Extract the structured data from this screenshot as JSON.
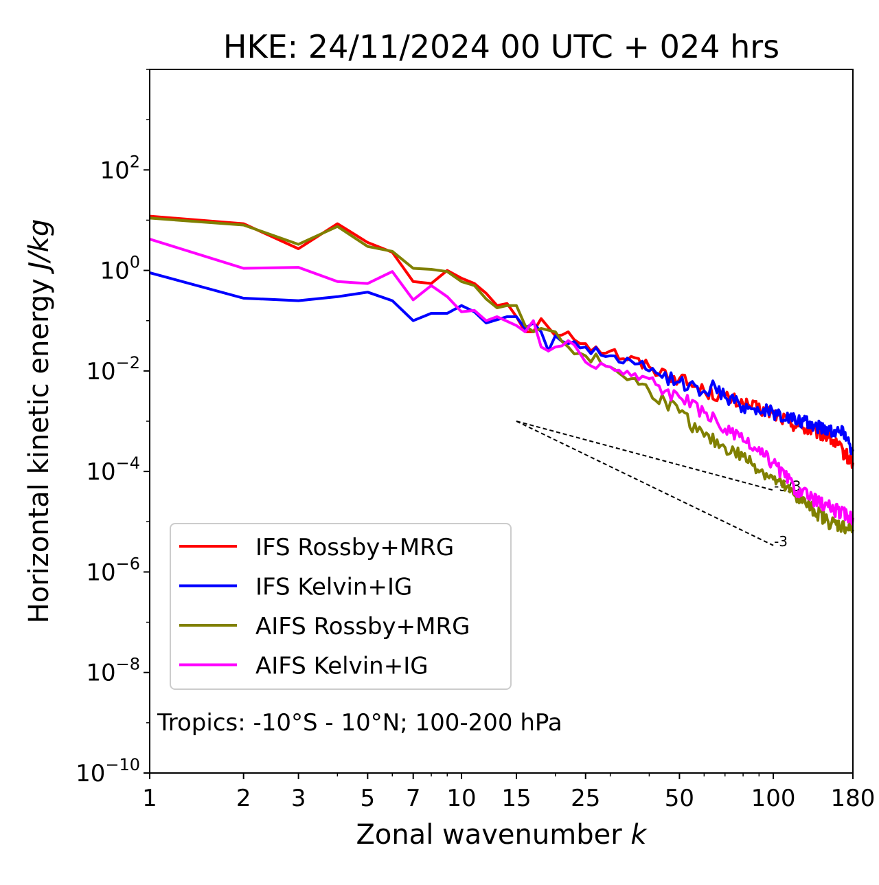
{
  "chart_data": {
    "type": "line",
    "title": "HKE: 24/11/2024 00 UTC + 024 hrs",
    "xlabel_text": "Zonal wavenumber ",
    "xlabel_var": "k",
    "ylabel_text": "Horizontal kinetic energy ",
    "ylabel_unit": "J/kg",
    "x_scale": "log",
    "y_scale": "log",
    "xlim": [
      1,
      180
    ],
    "ylim": [
      1e-10,
      10000
    ],
    "x_ticks": [
      1,
      2,
      3,
      5,
      7,
      10,
      15,
      25,
      50,
      100,
      180
    ],
    "x_tick_labels": [
      "1",
      "2",
      "3",
      "5",
      "7",
      "10",
      "15",
      "25",
      "50",
      "100",
      "180"
    ],
    "y_ticks": [
      {
        "value": 100.0,
        "base": "10",
        "exp": "2"
      },
      {
        "value": 1.0,
        "base": "10",
        "exp": "0"
      },
      {
        "value": 0.01,
        "base": "10",
        "exp": "−2"
      },
      {
        "value": 0.0001,
        "base": "10",
        "exp": "−4"
      },
      {
        "value": 1e-06,
        "base": "10",
        "exp": "−6"
      },
      {
        "value": 1e-08,
        "base": "10",
        "exp": "−8"
      },
      {
        "value": 1e-10,
        "base": "10",
        "exp": "−10"
      }
    ],
    "legend_position": "lower-left",
    "annotation": "Tropics: -10°S - 10°N; 100-200 hPa",
    "reference_lines": [
      {
        "label": "-5/3",
        "slope": -1.6667,
        "x_start": 15,
        "y_start": 0.001,
        "x_end": 100
      },
      {
        "label": "-3",
        "slope": -3,
        "x_start": 15,
        "y_start": 0.001,
        "x_end": 100
      }
    ],
    "series": [
      {
        "name": "IFS Rossby+MRG",
        "color": "#ff0000",
        "anchors": [
          [
            1,
            12
          ],
          [
            2,
            8.5
          ],
          [
            3,
            2.7
          ],
          [
            4,
            8.5
          ],
          [
            5,
            3.6
          ],
          [
            6,
            2.3
          ],
          [
            7,
            0.6
          ],
          [
            8,
            0.55
          ],
          [
            9,
            1.0
          ],
          [
            10,
            0.7
          ],
          [
            11,
            0.55
          ],
          [
            12,
            0.35
          ],
          [
            13,
            0.2
          ],
          [
            14,
            0.22
          ],
          [
            15,
            0.12
          ],
          [
            16,
            0.06
          ],
          [
            17,
            0.06
          ],
          [
            18,
            0.11
          ],
          [
            20,
            0.05
          ],
          [
            22,
            0.06
          ],
          [
            25,
            0.035
          ],
          [
            30,
            0.025
          ],
          [
            40,
            0.012
          ],
          [
            50,
            0.007
          ],
          [
            60,
            0.004
          ],
          [
            70,
            0.003
          ],
          [
            80,
            0.0022
          ],
          [
            100,
            0.0014
          ],
          [
            120,
            0.0008
          ],
          [
            150,
            0.0005
          ],
          [
            180,
            0.00015
          ]
        ]
      },
      {
        "name": "IFS Kelvin+IG",
        "color": "#0000ff",
        "anchors": [
          [
            1,
            0.9
          ],
          [
            2,
            0.28
          ],
          [
            3,
            0.25
          ],
          [
            4,
            0.3
          ],
          [
            5,
            0.37
          ],
          [
            6,
            0.25
          ],
          [
            7,
            0.1
          ],
          [
            8,
            0.14
          ],
          [
            9,
            0.14
          ],
          [
            10,
            0.2
          ],
          [
            11,
            0.15
          ],
          [
            12,
            0.09
          ],
          [
            14,
            0.12
          ],
          [
            15,
            0.12
          ],
          [
            16,
            0.07
          ],
          [
            17,
            0.09
          ],
          [
            18,
            0.06
          ],
          [
            19,
            0.025
          ],
          [
            20,
            0.05
          ],
          [
            22,
            0.035
          ],
          [
            25,
            0.03
          ],
          [
            30,
            0.02
          ],
          [
            40,
            0.01
          ],
          [
            50,
            0.006
          ],
          [
            60,
            0.004
          ],
          [
            65,
            0.005
          ],
          [
            70,
            0.003
          ],
          [
            80,
            0.002
          ],
          [
            100,
            0.0015
          ],
          [
            120,
            0.001
          ],
          [
            150,
            0.0007
          ],
          [
            170,
            0.0006
          ],
          [
            180,
            0.00025
          ]
        ]
      },
      {
        "name": "AIFS Rossby+MRG",
        "color": "#808000",
        "anchors": [
          [
            1,
            11
          ],
          [
            2,
            8.0
          ],
          [
            3,
            3.3
          ],
          [
            4,
            7.5
          ],
          [
            5,
            3.0
          ],
          [
            6,
            2.4
          ],
          [
            7,
            1.1
          ],
          [
            8,
            1.05
          ],
          [
            9,
            0.95
          ],
          [
            10,
            0.6
          ],
          [
            11,
            0.5
          ],
          [
            12,
            0.27
          ],
          [
            13,
            0.18
          ],
          [
            14,
            0.2
          ],
          [
            15,
            0.2
          ],
          [
            16,
            0.08
          ],
          [
            17,
            0.06
          ],
          [
            18,
            0.07
          ],
          [
            20,
            0.06
          ],
          [
            22,
            0.03
          ],
          [
            25,
            0.02
          ],
          [
            30,
            0.012
          ],
          [
            35,
            0.007
          ],
          [
            40,
            0.004
          ],
          [
            45,
            0.0025
          ],
          [
            50,
            0.0015
          ],
          [
            60,
            0.0005
          ],
          [
            70,
            0.0003
          ],
          [
            80,
            0.0002
          ],
          [
            100,
            7e-05
          ],
          [
            120,
            3e-05
          ],
          [
            150,
            1e-05
          ],
          [
            180,
            7e-06
          ]
        ]
      },
      {
        "name": "AIFS Kelvin+IG",
        "color": "#ff00ff",
        "anchors": [
          [
            1,
            4.2
          ],
          [
            2,
            1.1
          ],
          [
            3,
            1.15
          ],
          [
            4,
            0.6
          ],
          [
            5,
            0.55
          ],
          [
            6,
            0.95
          ],
          [
            7,
            0.26
          ],
          [
            8,
            0.5
          ],
          [
            9,
            0.3
          ],
          [
            10,
            0.15
          ],
          [
            11,
            0.16
          ],
          [
            12,
            0.1
          ],
          [
            13,
            0.12
          ],
          [
            15,
            0.08
          ],
          [
            16,
            0.06
          ],
          [
            17,
            0.1
          ],
          [
            18,
            0.03
          ],
          [
            19,
            0.025
          ],
          [
            20,
            0.03
          ],
          [
            22,
            0.04
          ],
          [
            25,
            0.015
          ],
          [
            30,
            0.012
          ],
          [
            35,
            0.008
          ],
          [
            40,
            0.007
          ],
          [
            45,
            0.004
          ],
          [
            50,
            0.003
          ],
          [
            60,
            0.0015
          ],
          [
            70,
            0.0007
          ],
          [
            80,
            0.0004
          ],
          [
            100,
            0.00015
          ],
          [
            120,
            4e-05
          ],
          [
            150,
            2e-05
          ],
          [
            180,
            1.2e-05
          ]
        ]
      }
    ]
  }
}
